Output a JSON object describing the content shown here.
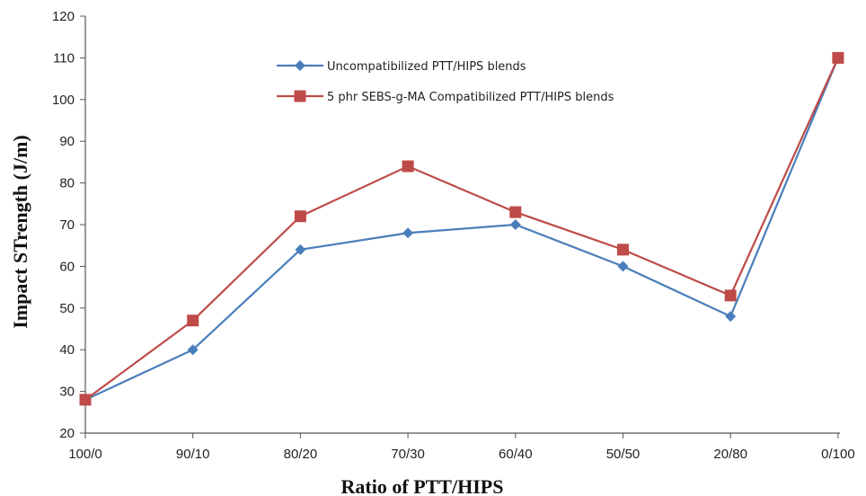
{
  "chart_data": {
    "type": "line",
    "categories": [
      "100/0",
      "90/10",
      "80/20",
      "70/30",
      "60/40",
      "50/50",
      "20/80",
      "0/100"
    ],
    "series": [
      {
        "name": "Uncompatibilized PTT/HIPS blends",
        "values": [
          28,
          40,
          64,
          68,
          70,
          60,
          48,
          110
        ],
        "color": "#4a7ebb",
        "marker": "diamond"
      },
      {
        "name": "5 phr SEBS-g-MA Compatibilized PTT/HIPS blends",
        "values": [
          28,
          47,
          72,
          84,
          73,
          64,
          53,
          110
        ],
        "color": "#be4b48",
        "marker": "square"
      }
    ],
    "xlabel": "Ratio of PTT/HIPS",
    "ylabel": "Impact STrength (J/m)",
    "ylim": [
      20,
      120
    ],
    "yticks": [
      20,
      30,
      40,
      50,
      60,
      70,
      80,
      90,
      100,
      110,
      120
    ],
    "grid": false,
    "legend_position": "top-right"
  }
}
